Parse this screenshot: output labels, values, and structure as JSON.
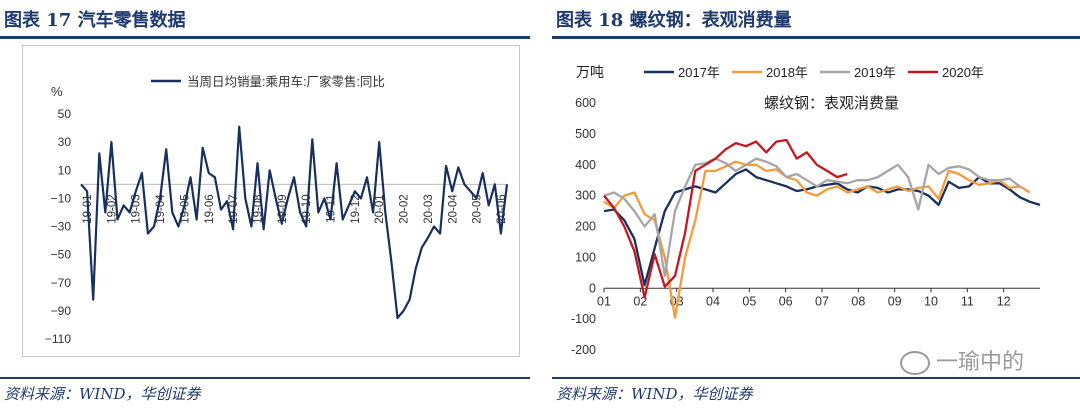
{
  "left": {
    "figure_title": "图表 17   汽车零售数据",
    "source": "资料来源：WIND，华创证券"
  },
  "right": {
    "figure_title": "图表 18   螺纹钢：表观消费量",
    "source": "资料来源：WIND，华创证券"
  },
  "watermark": "一瑜中的",
  "colors": {
    "navy": "#1f3a6e",
    "series_2017": "#17305e",
    "series_2018": "#f39b3d",
    "series_2019": "#a6a6a6",
    "series_2020": "#c0191f"
  },
  "chart_data": [
    {
      "type": "line",
      "title": "",
      "ylabel": "%",
      "legend": [
        "当周日均销量:乘用车:厂家零售:同比"
      ],
      "ylim": [
        -110,
        50
      ],
      "yticks": [
        50,
        30,
        10,
        -10,
        -30,
        -50,
        -70,
        -90,
        -110
      ],
      "xticks": [
        "19-01",
        "19-02",
        "19-03",
        "19-04",
        "19-05",
        "19-06",
        "19-07",
        "19-08",
        "19-09",
        "19-10",
        "19-11",
        "19-12",
        "20-01",
        "20-02",
        "20-03",
        "20-04",
        "20-05",
        "20-06"
      ],
      "series": [
        {
          "name": "当周日均销量:乘用车:厂家零售:同比",
          "values": [
            0,
            -5,
            -82,
            22,
            -20,
            30,
            -25,
            -15,
            -20,
            -5,
            8,
            -35,
            -30,
            -10,
            25,
            -20,
            -30,
            -15,
            5,
            -25,
            26,
            8,
            5,
            -18,
            -12,
            -32,
            41,
            -10,
            -30,
            15,
            -32,
            10,
            -10,
            -28,
            -10,
            5,
            -20,
            -30,
            32,
            -20,
            -10,
            -25,
            15,
            -25,
            -15,
            -5,
            -10,
            5,
            -20,
            30,
            -20,
            -55,
            -95,
            -90,
            -82,
            -60,
            -45,
            -38,
            -30,
            -35,
            13,
            -5,
            12,
            0,
            -5,
            -10,
            8,
            -15,
            0,
            -35,
            0
          ],
          "color": "#17305e"
        }
      ]
    },
    {
      "type": "line",
      "title": "螺纹钢：表观消费量",
      "ylabel": "万吨",
      "ylim": [
        -200,
        600
      ],
      "yticks": [
        600,
        500,
        400,
        300,
        200,
        100,
        0,
        -100,
        -200
      ],
      "xticks": [
        "01",
        "02",
        "03",
        "04",
        "05",
        "06",
        "07",
        "08",
        "09",
        "10",
        "11",
        "12"
      ],
      "series": [
        {
          "name": "2017年",
          "color": "#17305e",
          "values": [
            250,
            255,
            220,
            160,
            10,
            130,
            250,
            310,
            320,
            330,
            320,
            310,
            340,
            370,
            385,
            360,
            350,
            340,
            330,
            315,
            320,
            330,
            335,
            340,
            320,
            310,
            330,
            325,
            310,
            320,
            320,
            315,
            300,
            270,
            345,
            325,
            330,
            360,
            340,
            340,
            320,
            295,
            280,
            270
          ]
        },
        {
          "name": "2018年",
          "color": "#f39b3d",
          "values": [
            280,
            260,
            300,
            310,
            240,
            220,
            100,
            -95,
            100,
            220,
            380,
            380,
            395,
            410,
            400,
            400,
            380,
            385,
            360,
            350,
            310,
            300,
            320,
            330,
            310,
            320,
            330,
            310,
            320,
            330,
            315,
            325,
            330,
            290,
            380,
            370,
            350,
            335,
            340,
            350,
            325,
            330,
            310
          ]
        },
        {
          "name": "2019年",
          "color": "#a6a6a6",
          "values": [
            300,
            310,
            290,
            250,
            200,
            240,
            40,
            250,
            330,
            400,
            405,
            420,
            405,
            380,
            400,
            420,
            410,
            395,
            360,
            370,
            350,
            330,
            350,
            345,
            340,
            350,
            350,
            360,
            380,
            400,
            360,
            255,
            400,
            370,
            390,
            395,
            385,
            360,
            350,
            350,
            355,
            330
          ]
        },
        {
          "name": "2020年",
          "color": "#c0191f",
          "values": [
            300,
            260,
            200,
            120,
            -30,
            110,
            5,
            40,
            180,
            380,
            400,
            420,
            450,
            470,
            460,
            475,
            440,
            475,
            480,
            420,
            440,
            400,
            380,
            360,
            370
          ]
        }
      ]
    }
  ]
}
